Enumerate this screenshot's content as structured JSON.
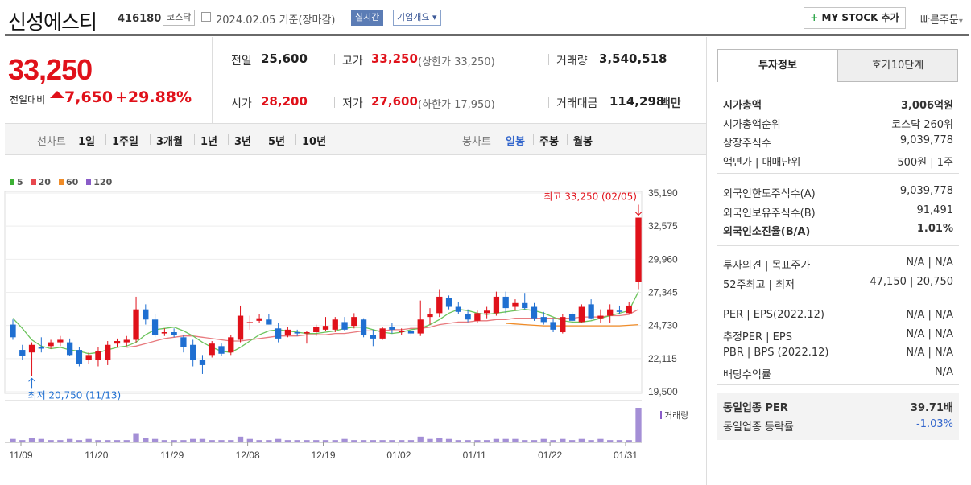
{
  "header": {
    "stock_name": "신성에스티",
    "stock_code": "416180",
    "market_badge": "코스닥",
    "date_text": "2024.02.05  기준(장마감)",
    "realtime_badge": "실시간",
    "company_badge": "기업개요",
    "mystock_button": "MY STOCK 추가",
    "quick_order": "빠른주문"
  },
  "price": {
    "current": "33,250",
    "change_label": "전일대비",
    "change_value": "7,650",
    "change_pct": "+29.88%"
  },
  "summary": {
    "prev_close_label": "전일",
    "prev_close": "25,600",
    "high_label": "고가",
    "high": "33,250",
    "upper_limit": "(상한가 33,250)",
    "volume_label": "거래량",
    "volume": "3,540,518",
    "open_label": "시가",
    "open": "28,200",
    "low_label": "저가",
    "low": "27,600",
    "lower_limit": "(하한가 17,950)",
    "amount_label": "거래대금",
    "amount": "114,298",
    "amount_unit": "백만"
  },
  "period_bar": {
    "line_label": "선차트",
    "line_items": [
      "1일",
      "1주일",
      "3개월",
      "1년",
      "3년",
      "5년",
      "10년"
    ],
    "candle_label": "봉차트",
    "candle_items": [
      "일봉",
      "주봉",
      "월봉"
    ],
    "candle_active": "일봉"
  },
  "right_panel": {
    "tab_active": "투자정보",
    "tab_other": "호가10단계",
    "group1": [
      {
        "k": "시가총액",
        "v": "3,006억원",
        "bold": true
      },
      {
        "k": "시가총액순위",
        "v": "코스닥 260위"
      },
      {
        "k": "상장주식수",
        "v": "9,039,778"
      },
      {
        "k": "액면가 | 매매단위",
        "v": "500원 | 1주"
      }
    ],
    "group2": [
      {
        "k": "외국인한도주식수(A)",
        "v": "9,039,778"
      },
      {
        "k": "외국인보유주식수(B)",
        "v": "91,491"
      },
      {
        "k": "외국인소진율(B/A)",
        "v": "1.01%",
        "bold": true
      }
    ],
    "group3": [
      {
        "k": "투자의견 | 목표주가",
        "v": "N/A | N/A"
      },
      {
        "k": "52주최고 | 최저",
        "v": "47,150 | 20,750"
      }
    ],
    "group4": [
      {
        "k": "PER | EPS(2022.12)",
        "v": "N/A | N/A"
      },
      {
        "k": "추정PER | EPS",
        "v": "N/A | N/A"
      },
      {
        "k": "PBR | BPS (2022.12)",
        "v": "N/A | N/A"
      },
      {
        "k": "배당수익률",
        "v": "N/A"
      }
    ],
    "group5": [
      {
        "k": "동일업종 PER",
        "v": "39.71배",
        "bold": true
      },
      {
        "k": "동일업종 등락률",
        "v": "-1.03%",
        "blue": true
      }
    ]
  },
  "chart_data": {
    "type": "candlestick",
    "legend": [
      {
        "name": "5",
        "color": "#3cb034"
      },
      {
        "name": "20",
        "color": "#e8484e"
      },
      {
        "name": "60",
        "color": "#f08c28"
      },
      {
        "name": "120",
        "color": "#8a5cc8"
      }
    ],
    "y_ticks": [
      "35,190",
      "32,575",
      "29,960",
      "27,345",
      "24,730",
      "22,115",
      "19,500"
    ],
    "ylim": [
      19500,
      35190
    ],
    "x_ticks": [
      "11/09",
      "11/20",
      "11/29",
      "12/08",
      "12/19",
      "01/02",
      "01/11",
      "01/22",
      "01/31"
    ],
    "high_annotation": "최고 33,250 (02/05)",
    "low_annotation": "최저 20,750 (11/13)",
    "volume_label": "거래량",
    "candles": [
      {
        "o": 24800,
        "h": 25200,
        "l": 23600,
        "c": 23800
      },
      {
        "o": 22800,
        "h": 23200,
        "l": 22000,
        "c": 22300
      },
      {
        "o": 22600,
        "h": 23400,
        "l": 20750,
        "c": 23200
      },
      {
        "o": 23000,
        "h": 23800,
        "l": 22600,
        "c": 22900
      },
      {
        "o": 23100,
        "h": 23600,
        "l": 22900,
        "c": 23400
      },
      {
        "o": 23400,
        "h": 23900,
        "l": 23100,
        "c": 23600
      },
      {
        "o": 23400,
        "h": 23700,
        "l": 22300,
        "c": 22400
      },
      {
        "o": 22800,
        "h": 23000,
        "l": 21500,
        "c": 21700
      },
      {
        "o": 22000,
        "h": 22600,
        "l": 21700,
        "c": 22400
      },
      {
        "o": 22000,
        "h": 23000,
        "l": 21500,
        "c": 22700
      },
      {
        "o": 22000,
        "h": 23500,
        "l": 21600,
        "c": 23200
      },
      {
        "o": 23300,
        "h": 23700,
        "l": 23000,
        "c": 23500
      },
      {
        "o": 23400,
        "h": 23900,
        "l": 23100,
        "c": 23600
      },
      {
        "o": 23600,
        "h": 27000,
        "l": 23400,
        "c": 26000
      },
      {
        "o": 26000,
        "h": 26400,
        "l": 24800,
        "c": 25200
      },
      {
        "o": 25200,
        "h": 25600,
        "l": 23800,
        "c": 24000
      },
      {
        "o": 24100,
        "h": 24500,
        "l": 23900,
        "c": 24200
      },
      {
        "o": 24200,
        "h": 24500,
        "l": 23800,
        "c": 24000
      },
      {
        "o": 23800,
        "h": 24000,
        "l": 22600,
        "c": 23000
      },
      {
        "o": 23200,
        "h": 23600,
        "l": 21500,
        "c": 22000
      },
      {
        "o": 22000,
        "h": 22400,
        "l": 20900,
        "c": 21600
      },
      {
        "o": 22400,
        "h": 23500,
        "l": 22200,
        "c": 23300
      },
      {
        "o": 23100,
        "h": 23300,
        "l": 22300,
        "c": 22500
      },
      {
        "o": 22600,
        "h": 24000,
        "l": 22400,
        "c": 23800
      },
      {
        "o": 23600,
        "h": 26300,
        "l": 23400,
        "c": 25500
      },
      {
        "o": 25000,
        "h": 25500,
        "l": 24400,
        "c": 25000
      },
      {
        "o": 25100,
        "h": 25600,
        "l": 24900,
        "c": 25300
      },
      {
        "o": 25200,
        "h": 25600,
        "l": 24800,
        "c": 24800
      },
      {
        "o": 24500,
        "h": 24900,
        "l": 23400,
        "c": 23700
      },
      {
        "o": 24000,
        "h": 24600,
        "l": 23800,
        "c": 24400
      },
      {
        "o": 24200,
        "h": 24400,
        "l": 23900,
        "c": 24100
      },
      {
        "o": 24100,
        "h": 24300,
        "l": 23300,
        "c": 24200
      },
      {
        "o": 24200,
        "h": 24800,
        "l": 23900,
        "c": 24600
      },
      {
        "o": 24400,
        "h": 25400,
        "l": 24300,
        "c": 24700
      },
      {
        "o": 24400,
        "h": 25400,
        "l": 24200,
        "c": 25200
      },
      {
        "o": 25000,
        "h": 25400,
        "l": 24300,
        "c": 24400
      },
      {
        "o": 24700,
        "h": 25700,
        "l": 24500,
        "c": 25400
      },
      {
        "o": 25200,
        "h": 25300,
        "l": 23800,
        "c": 24000
      },
      {
        "o": 24000,
        "h": 24400,
        "l": 23100,
        "c": 23700
      },
      {
        "o": 23700,
        "h": 24600,
        "l": 23600,
        "c": 24500
      },
      {
        "o": 24600,
        "h": 24900,
        "l": 24100,
        "c": 24400
      },
      {
        "o": 24200,
        "h": 24500,
        "l": 24000,
        "c": 24300
      },
      {
        "o": 24300,
        "h": 24600,
        "l": 23900,
        "c": 24100
      },
      {
        "o": 24100,
        "h": 26700,
        "l": 23900,
        "c": 25200
      },
      {
        "o": 25400,
        "h": 26100,
        "l": 24800,
        "c": 25600
      },
      {
        "o": 25700,
        "h": 27600,
        "l": 25400,
        "c": 27000
      },
      {
        "o": 26900,
        "h": 27100,
        "l": 26000,
        "c": 26200
      },
      {
        "o": 26200,
        "h": 26600,
        "l": 25600,
        "c": 25800
      },
      {
        "o": 25600,
        "h": 26000,
        "l": 25000,
        "c": 25200
      },
      {
        "o": 25100,
        "h": 25900,
        "l": 24900,
        "c": 25700
      },
      {
        "o": 25700,
        "h": 26200,
        "l": 25300,
        "c": 25900
      },
      {
        "o": 25700,
        "h": 27400,
        "l": 25500,
        "c": 27000
      },
      {
        "o": 27000,
        "h": 27400,
        "l": 25700,
        "c": 26100
      },
      {
        "o": 26200,
        "h": 26800,
        "l": 25900,
        "c": 26500
      },
      {
        "o": 26500,
        "h": 27300,
        "l": 26000,
        "c": 26100
      },
      {
        "o": 26200,
        "h": 26500,
        "l": 25100,
        "c": 25300
      },
      {
        "o": 25400,
        "h": 25800,
        "l": 24800,
        "c": 25000
      },
      {
        "o": 25000,
        "h": 25300,
        "l": 24200,
        "c": 24400
      },
      {
        "o": 24200,
        "h": 25600,
        "l": 24100,
        "c": 25400
      },
      {
        "o": 25600,
        "h": 25800,
        "l": 24900,
        "c": 25100
      },
      {
        "o": 25000,
        "h": 26400,
        "l": 24900,
        "c": 26200
      },
      {
        "o": 26400,
        "h": 26800,
        "l": 25200,
        "c": 25300
      },
      {
        "o": 25300,
        "h": 26000,
        "l": 24900,
        "c": 25500
      },
      {
        "o": 25500,
        "h": 26400,
        "l": 24900,
        "c": 26000
      },
      {
        "o": 25900,
        "h": 26300,
        "l": 25600,
        "c": 25800
      },
      {
        "o": 25700,
        "h": 26600,
        "l": 25600,
        "c": 26300
      },
      {
        "o": 28200,
        "h": 33250,
        "l": 27600,
        "c": 33250
      }
    ],
    "ma5": [
      25300,
      24500,
      23600,
      23100,
      22900,
      23000,
      22800,
      22700,
      22500,
      22600,
      22800,
      23000,
      23100,
      23400,
      24000,
      24400,
      24500,
      24600,
      24300,
      23900,
      23400,
      23000,
      22700,
      22600,
      23000,
      23500,
      24000,
      24300,
      24400,
      24300,
      24200,
      24100,
      24100,
      24200,
      24300,
      24500,
      24600,
      24600,
      24400,
      24200,
      24100,
      24200,
      24400,
      24500,
      24800,
      25200,
      25700,
      26000,
      25900,
      25700,
      25600,
      25700,
      25800,
      25900,
      26000,
      25900,
      25700,
      25400,
      25100,
      25000,
      25000,
      25100,
      25300,
      25500,
      25700,
      25900,
      27400
    ],
    "ma20": [
      null,
      null,
      null,
      null,
      null,
      null,
      null,
      null,
      null,
      null,
      null,
      null,
      23000,
      23100,
      23300,
      23500,
      23700,
      23800,
      23900,
      23900,
      23800,
      23700,
      23600,
      23500,
      23500,
      23600,
      23700,
      23800,
      23900,
      23900,
      23900,
      24000,
      24000,
      24000,
      24100,
      24100,
      24200,
      24300,
      24300,
      24300,
      24400,
      24400,
      24500,
      24500,
      24600,
      24800,
      24900,
      25000,
      25000,
      25100,
      25100,
      25200,
      25200,
      25300,
      25300,
      25300,
      25300,
      25300,
      25300,
      25300,
      25400,
      25400,
      25400,
      25500,
      25500,
      25600,
      26000
    ],
    "ma60": [
      null,
      null,
      null,
      null,
      null,
      null,
      null,
      null,
      null,
      null,
      null,
      null,
      null,
      null,
      null,
      null,
      null,
      null,
      null,
      null,
      null,
      null,
      null,
      null,
      null,
      null,
      null,
      null,
      null,
      null,
      null,
      null,
      null,
      null,
      null,
      null,
      null,
      null,
      null,
      null,
      null,
      null,
      null,
      null,
      null,
      null,
      null,
      null,
      null,
      null,
      null,
      null,
      24900,
      24850,
      24800,
      24750,
      24700,
      24700,
      24700,
      24700,
      24700,
      24700,
      24700,
      24700,
      24700,
      24750,
      24800
    ],
    "volume": [
      3,
      2,
      4,
      3,
      2,
      2,
      3,
      2,
      3,
      2,
      2,
      2,
      2,
      8,
      4,
      3,
      2,
      2,
      2,
      3,
      3,
      2,
      2,
      2,
      5,
      3,
      2,
      2,
      3,
      2,
      2,
      2,
      2,
      2,
      2,
      3,
      2,
      2,
      2,
      2,
      2,
      2,
      2,
      5,
      3,
      4,
      3,
      2,
      2,
      2,
      2,
      3,
      3,
      3,
      2,
      2,
      3,
      2,
      3,
      2,
      3,
      2,
      3,
      2,
      2,
      2,
      30
    ]
  }
}
